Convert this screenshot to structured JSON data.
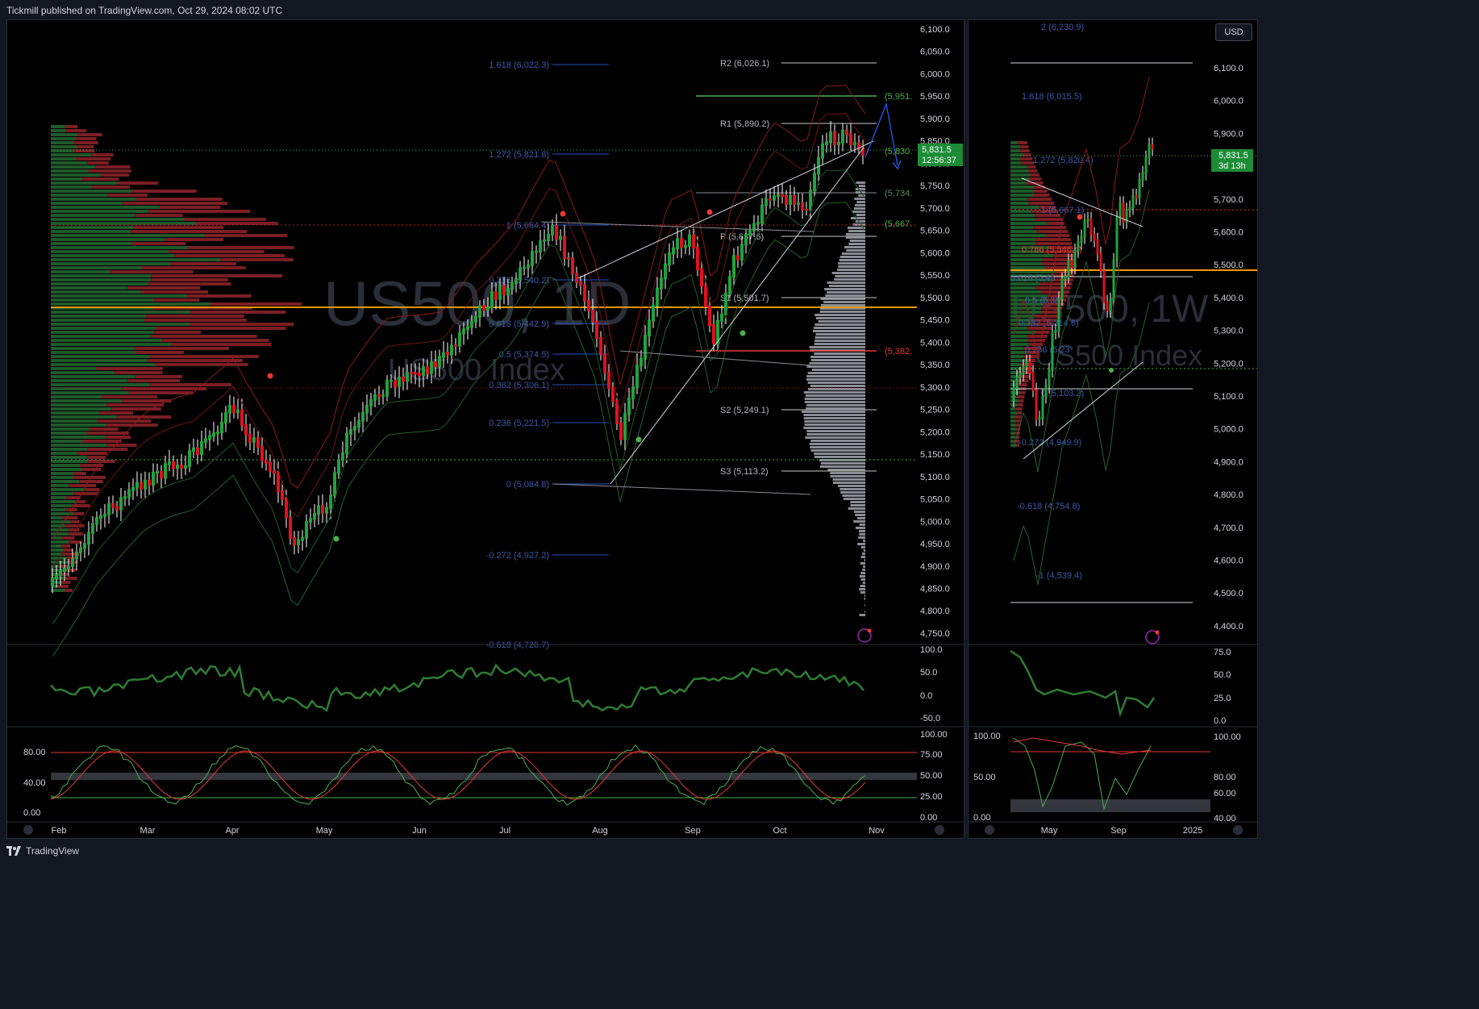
{
  "header": {
    "publisher": "Tickmill published on TradingView.com, Oct 29, 2024 08:02 UTC"
  },
  "footer": {
    "brand": "TradingView"
  },
  "colors": {
    "up": "#1f8a3a",
    "down": "#c8102e",
    "fib": "#2962ff",
    "pivot": "#b2b5be",
    "poc": "#ff9800",
    "bg": "#000000"
  },
  "left_chart": {
    "watermark_symbol": "US500, 1D",
    "watermark_desc": "US500 Index",
    "price_axis": [
      "6,100.0",
      "6,050.0",
      "6,000.0",
      "5,950.0",
      "5,900.0",
      "5,850.0",
      "5,800.0",
      "5,750.0",
      "5,700.0",
      "5,650.0",
      "5,600.0",
      "5,550.0",
      "5,500.0",
      "5,450.0",
      "5,400.0",
      "5,350.0",
      "5,300.0",
      "5,250.0",
      "5,200.0",
      "5,150.0",
      "5,100.0",
      "5,050.0",
      "5,000.0",
      "4,950.0",
      "4,900.0",
      "4,850.0",
      "4,800.0",
      "4,750.0"
    ],
    "time_axis": [
      "Feb",
      "Mar",
      "Apr",
      "May",
      "Jun",
      "Jul",
      "Aug",
      "Sep",
      "Oct",
      "Nov"
    ],
    "last_price": "5,831.5",
    "countdown": "12:56:37",
    "fib_labels": [
      "1.618 (6,022.3)",
      "1.272 (5,821.8)",
      "1 (5,664.4)",
      "0.786 (5,540.2)",
      "0.618 (5,442.9)",
      "0.5 (5,374.5)",
      "0.382 (5,306.1)",
      "0.236 (5,221.5)",
      "0 (5,084.8)",
      "-0.272 (4,927.2)",
      "-0.618 (4,726.7)"
    ],
    "pivot_labels": [
      "R2 (6,026.1)",
      "R1 (5,890.2)",
      "P (5,637.6)",
      "S1 (5,501.7)",
      "S2 (5,249.1)",
      "S3 (5,113.2)"
    ],
    "right_tags": [
      "(5,951.",
      "(5,830.",
      "(5,734.",
      "(5,667.",
      "(5,382."
    ],
    "osc1_axis": [
      "100.0",
      "50.0",
      "0.0",
      "-50.0"
    ],
    "osc2_axis": [
      "100.00",
      "75.00",
      "50.00",
      "25.00",
      "0.00"
    ],
    "osc2_left_axis": [
      "80.00",
      "40.00",
      "0.00"
    ]
  },
  "right_chart": {
    "watermark_symbol": "US500, 1W",
    "watermark_desc": "US500 Index",
    "currency_button": "USD",
    "price_axis": [
      "6,100.0",
      "6,000.0",
      "5,900.0",
      "5,800.0",
      "5,700.0",
      "5,600.0",
      "5,500.0",
      "5,400.0",
      "5,300.0",
      "5,200.0",
      "5,100.0",
      "5,000.0",
      "4,900.0",
      "4,800.0",
      "4,700.0",
      "4,600.0",
      "4,500.0",
      "4,400.0"
    ],
    "time_axis": [
      "May",
      "Sep",
      "2025"
    ],
    "last_price": "5,831.5",
    "countdown": "3d 13h",
    "fib_labels": [
      "2 (6,230.9)",
      "1.618 (6,015.5)",
      "1.272 (5,820.4)",
      "1 (5,667.1)",
      "0.786 (5,546.4)",
      "0.618 (5,45",
      "0.5 (5,38",
      "0.382 (5,314.6)",
      "0.236 (5,23",
      "0 (5,103.2)",
      "-0.272 (4,949.9)",
      "-0.618 (4,754.8)",
      "-1 (4,539.4)"
    ],
    "osc1_axis": [
      "75.0",
      "50.0",
      "25.0",
      "0.0"
    ],
    "osc2_axis": [
      "100.00",
      "80.00",
      "60.00",
      "40.00"
    ],
    "osc2_left_axis": [
      "100.00",
      "50.00",
      "0.00"
    ]
  }
}
